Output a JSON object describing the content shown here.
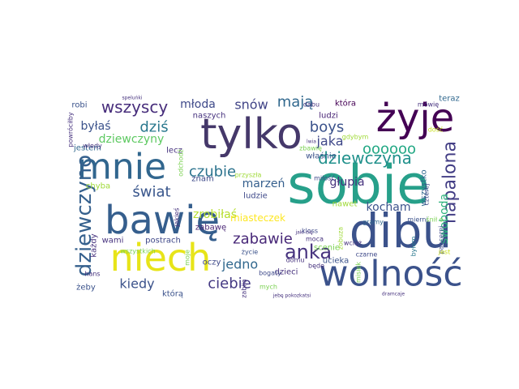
{
  "words": [
    {
      "text": "sobie",
      "color": "#27a08a"
    },
    {
      "text": "bawię",
      "color": "#355e8d"
    },
    {
      "text": "dibu",
      "color": "#3b528b"
    },
    {
      "text": "tylko",
      "color": "#45386a"
    },
    {
      "text": "mnie",
      "color": "#31668e"
    },
    {
      "text": "niech",
      "color": "#e7e419"
    },
    {
      "text": "wolność",
      "color": "#3b528b"
    },
    {
      "text": "żyje",
      "color": "#440154"
    },
    {
      "text": "dziewczyno",
      "color": "#35608d"
    },
    {
      "text": "dziewczyna",
      "color": "#21918c"
    },
    {
      "text": "napalona",
      "color": "#433e85"
    },
    {
      "text": "anka",
      "color": "#46327e"
    },
    {
      "text": "zabawie",
      "color": "#482878"
    },
    {
      "text": "wszyscy",
      "color": "#472d7b"
    },
    {
      "text": "oooooo",
      "color": "#22a884"
    },
    {
      "text": "boys",
      "color": "#3b528b"
    },
    {
      "text": "ciebie",
      "color": "#443983"
    },
    {
      "text": "świat",
      "color": "#39568c"
    },
    {
      "text": "czubie",
      "color": "#2c738e"
    },
    {
      "text": "snów",
      "color": "#414487"
    },
    {
      "text": "mają",
      "color": "#31688e"
    },
    {
      "text": "dziś",
      "color": "#2a788e"
    },
    {
      "text": "młoda",
      "color": "#3e4989"
    },
    {
      "text": "jaka",
      "color": "#3f4889"
    },
    {
      "text": "kiedy",
      "color": "#3b528b"
    },
    {
      "text": "kocham",
      "color": "#3b528b"
    },
    {
      "text": "jedno",
      "color": "#31688e"
    },
    {
      "text": "głupia",
      "color": "#46327e"
    },
    {
      "text": "marzeń",
      "color": "#355f8d"
    },
    {
      "text": "zrobiłaś",
      "color": "#b5de2b"
    },
    {
      "text": "swoboda",
      "color": "#2db27d"
    },
    {
      "text": "byłaś",
      "color": "#3b528b"
    },
    {
      "text": "dziewczyny",
      "color": "#5ec962"
    },
    {
      "text": "która",
      "color": "#440154"
    },
    {
      "text": "naszych",
      "color": "#46327e"
    },
    {
      "text": "jestem",
      "color": "#31688e"
    },
    {
      "text": "ludzi",
      "color": "#482475"
    },
    {
      "text": "ludzie",
      "color": "#3e4989"
    },
    {
      "text": "właśnie",
      "color": "#3b528b"
    },
    {
      "text": "wszystko",
      "color": "#31688e"
    },
    {
      "text": "postrach",
      "color": "#3f4889"
    },
    {
      "text": "wami",
      "color": "#46327e"
    },
    {
      "text": "którą",
      "color": "#3b528b"
    },
    {
      "text": "ucieka",
      "color": "#3b528b"
    },
    {
      "text": "dzieci",
      "color": "#46327e"
    },
    {
      "text": "scenie",
      "color": "#7ad151"
    },
    {
      "text": "miasteczek",
      "color": "#fde725"
    },
    {
      "text": "zabawę",
      "color": "#482475"
    },
    {
      "text": "robi",
      "color": "#3b528b"
    },
    {
      "text": "teraz",
      "color": "#31688e"
    },
    {
      "text": "lecz",
      "color": "#46327e"
    },
    {
      "text": "znam",
      "color": "#3e4989"
    },
    {
      "text": "nawet",
      "color": "#a0da39"
    },
    {
      "text": "oczy",
      "color": "#3e4989"
    },
    {
      "text": "żeby",
      "color": "#3b528b"
    },
    {
      "text": "chyba",
      "color": "#a0da39"
    },
    {
      "text": "każdy",
      "color": "#46327e"
    },
    {
      "text": "życie",
      "color": "#3b528b"
    },
    {
      "text": "mych",
      "color": "#7ad151"
    },
    {
      "text": "bogaty",
      "color": "#3e4989"
    },
    {
      "text": "domu",
      "color": "#46327e"
    },
    {
      "text": "kloss",
      "color": "#3e4989"
    },
    {
      "text": "czarne",
      "color": "#3e4989"
    },
    {
      "text": "byłem",
      "color": "#2a788e"
    },
    {
      "text": "gramy",
      "color": "#31688e"
    },
    {
      "text": "miłość",
      "color": "#3e4989"
    },
    {
      "text": "dabu",
      "color": "#46327e"
    },
    {
      "text": "mówię",
      "color": "#46327e"
    },
    {
      "text": "mierni",
      "color": "#3b528b"
    },
    {
      "text": "czterej",
      "color": "#3e4989"
    },
    {
      "text": "pancerni",
      "color": "#3e4989"
    },
    {
      "text": "gdybym",
      "color": "#a0da39"
    },
    {
      "text": "przyszła",
      "color": "#a0da39"
    },
    {
      "text": "odchodź",
      "color": "#7ad151"
    },
    {
      "text": "wszystkich",
      "color": "#7ad151"
    },
    {
      "text": "jakieś",
      "color": "#46327e"
    },
    {
      "text": "moje",
      "color": "#7ad151"
    },
    {
      "text": "będę",
      "color": "#46327e"
    },
    {
      "text": "wciąż",
      "color": "#46327e"
    },
    {
      "text": "misiek",
      "color": "#7ad151"
    },
    {
      "text": "śnił o",
      "color": "#7ad151"
    },
    {
      "text": "jest",
      "color": "#c8e020"
    },
    {
      "text": "dość",
      "color": "#c8e020"
    },
    {
      "text": "powróciłby",
      "color": "#46327e"
    },
    {
      "text": "włedy",
      "color": "#46327e"
    },
    {
      "text": "speluńki",
      "color": "#46327e"
    },
    {
      "text": "jebę pokozkatsi",
      "color": "#46327e"
    },
    {
      "text": "dramcaje",
      "color": "#46327e"
    },
    {
      "text": "zobuza",
      "color": "#a0da39"
    },
    {
      "text": "moca",
      "color": "#46327e"
    },
    {
      "text": "hans",
      "color": "#46327e"
    },
    {
      "text": "zabija",
      "color": "#46327e"
    },
    {
      "text": "zbawię",
      "color": "#7ad151"
    },
    {
      "text": "lwia",
      "color": "#46327e"
    },
    {
      "text": "jaki cię",
      "color": "#46327e"
    }
  ]
}
